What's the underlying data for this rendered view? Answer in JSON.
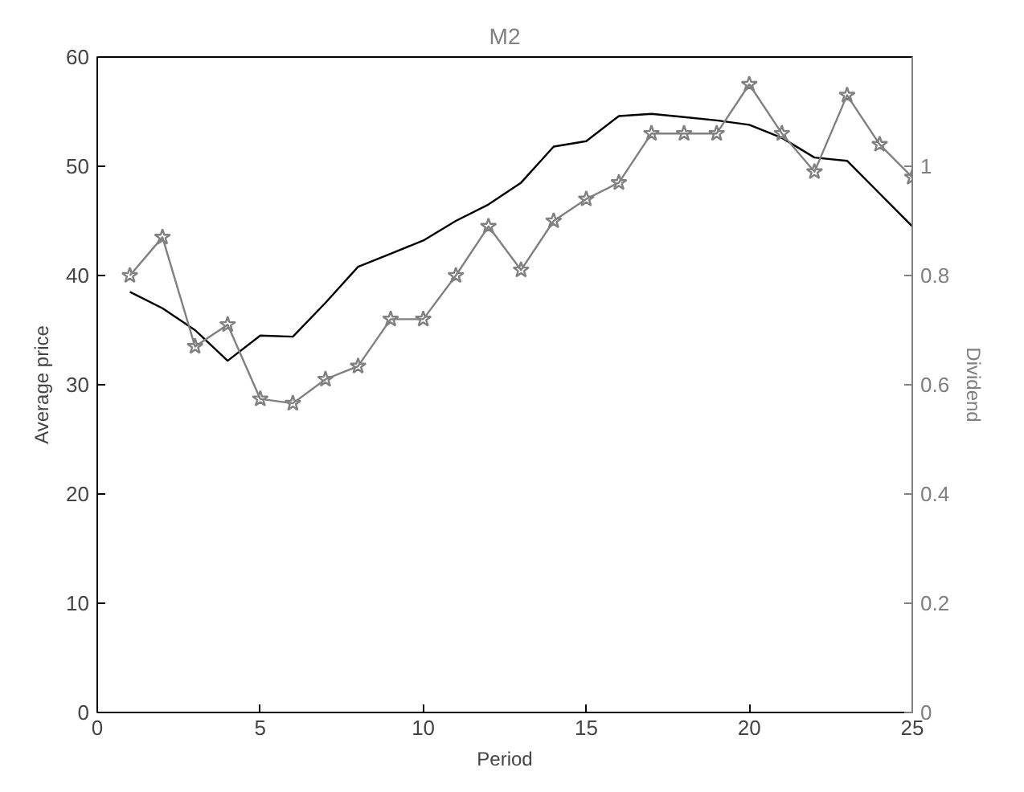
{
  "chart_data": {
    "type": "line",
    "title": "M2",
    "xlabel": "Period",
    "ylabel": "Average price",
    "y2label": "Dividend",
    "x": [
      1,
      2,
      3,
      4,
      5,
      6,
      7,
      8,
      9,
      10,
      11,
      12,
      13,
      14,
      15,
      16,
      17,
      18,
      19,
      20,
      21,
      22,
      23,
      24,
      25
    ],
    "series": [
      {
        "color": "#000000",
        "marker": "none",
        "values": [
          38.5,
          37,
          35,
          32.2,
          34.5,
          34.4,
          37.5,
          40.8,
          42,
          43.2,
          45,
          46.5,
          48.5,
          51.8,
          52.3,
          54.6,
          54.8,
          54.5,
          54.2,
          53.8,
          52.6,
          50.8,
          50.5,
          47.5,
          44.5
        ]
      },
      {
        "color": "#808080",
        "marker": "star",
        "axis": "y2",
        "values": [
          0.8,
          0.87,
          0.67,
          0.71,
          0.574,
          0.566,
          0.61,
          0.634,
          0.72,
          0.72,
          0.8,
          0.89,
          0.81,
          0.9,
          0.94,
          0.97,
          1.06,
          1.06,
          1.06,
          1.15,
          1.06,
          0.99,
          1.13,
          1.04,
          0.98
        ]
      }
    ],
    "xlim": [
      0,
      25
    ],
    "xticks": [
      0,
      5,
      10,
      15,
      20,
      25
    ],
    "ylim": [
      0,
      60
    ],
    "yticks": [
      0,
      10,
      20,
      30,
      40,
      50,
      60
    ],
    "y2lim": [
      0,
      1.2
    ],
    "y2ticks": [
      0,
      0.2,
      0.4,
      0.6,
      0.8,
      {
        "value": 1,
        "label": "1"
      }
    ]
  }
}
